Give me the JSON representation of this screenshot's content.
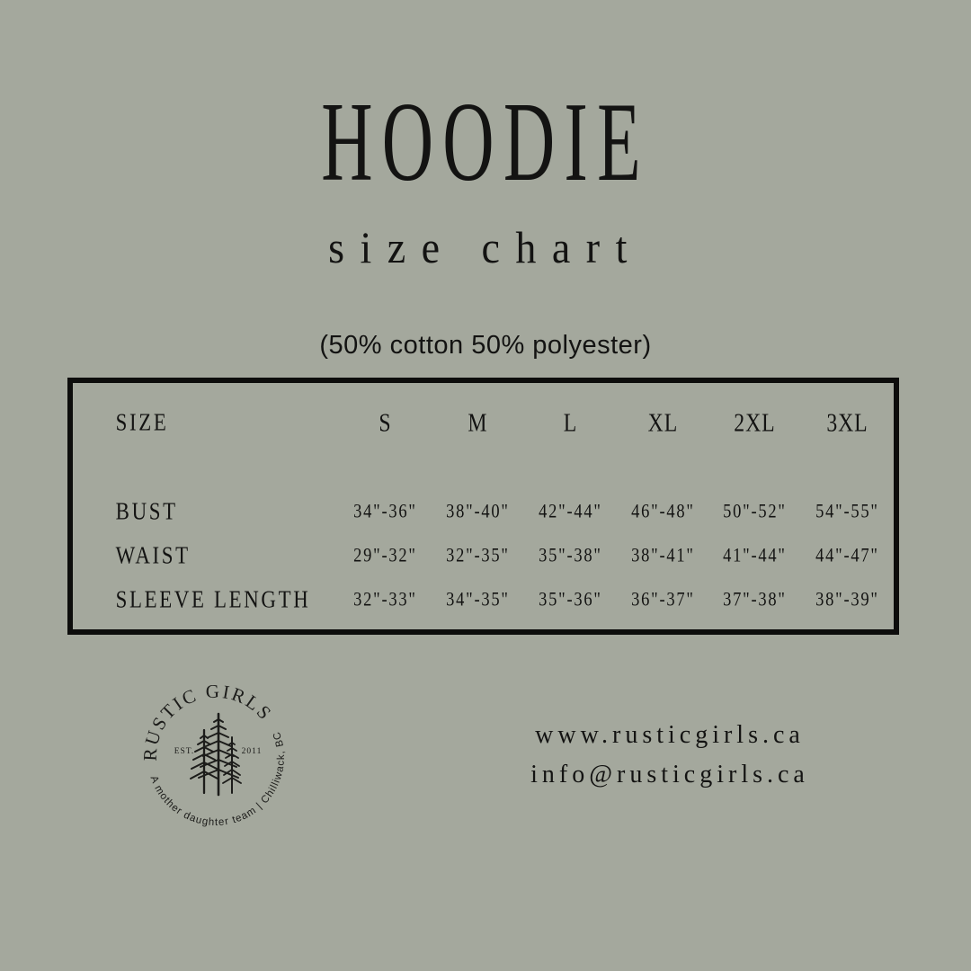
{
  "page": {
    "title": "HOODIE",
    "subtitle": "size chart",
    "material": "(50% cotton 50% polyester)"
  },
  "size_table": {
    "header_label": "SIZE",
    "columns": [
      "S",
      "M",
      "L",
      "XL",
      "2XL",
      "3XL"
    ],
    "rows": [
      {
        "label": "BUST",
        "values": [
          "34\"-36\"",
          "38\"-40\"",
          "42\"-44\"",
          "46\"-48\"",
          "50\"-52\"",
          "54\"-55\""
        ]
      },
      {
        "label": "WAIST",
        "values": [
          "29\"-32\"",
          "32\"-35\"",
          "35\"-38\"",
          "38\"-41\"",
          "41\"-44\"",
          "44\"-47\""
        ]
      },
      {
        "label": "SLEEVE LENGTH",
        "values": [
          "32\"-33\"",
          "34\"-35\"",
          "35\"-36\"",
          "36\"-37\"",
          "37\"-38\"",
          "38\"-39\""
        ]
      }
    ]
  },
  "logo": {
    "brand_arc": "RUSTIC GIRLS",
    "est_label": "EST.",
    "year": "2011",
    "tagline_arc": "A mother daughter team | Chilliwack, BC"
  },
  "contact": {
    "website": "www.rusticgirls.ca",
    "email": "info@rusticgirls.ca"
  },
  "colors": {
    "background": "#a4a89d",
    "ink": "#131312"
  }
}
